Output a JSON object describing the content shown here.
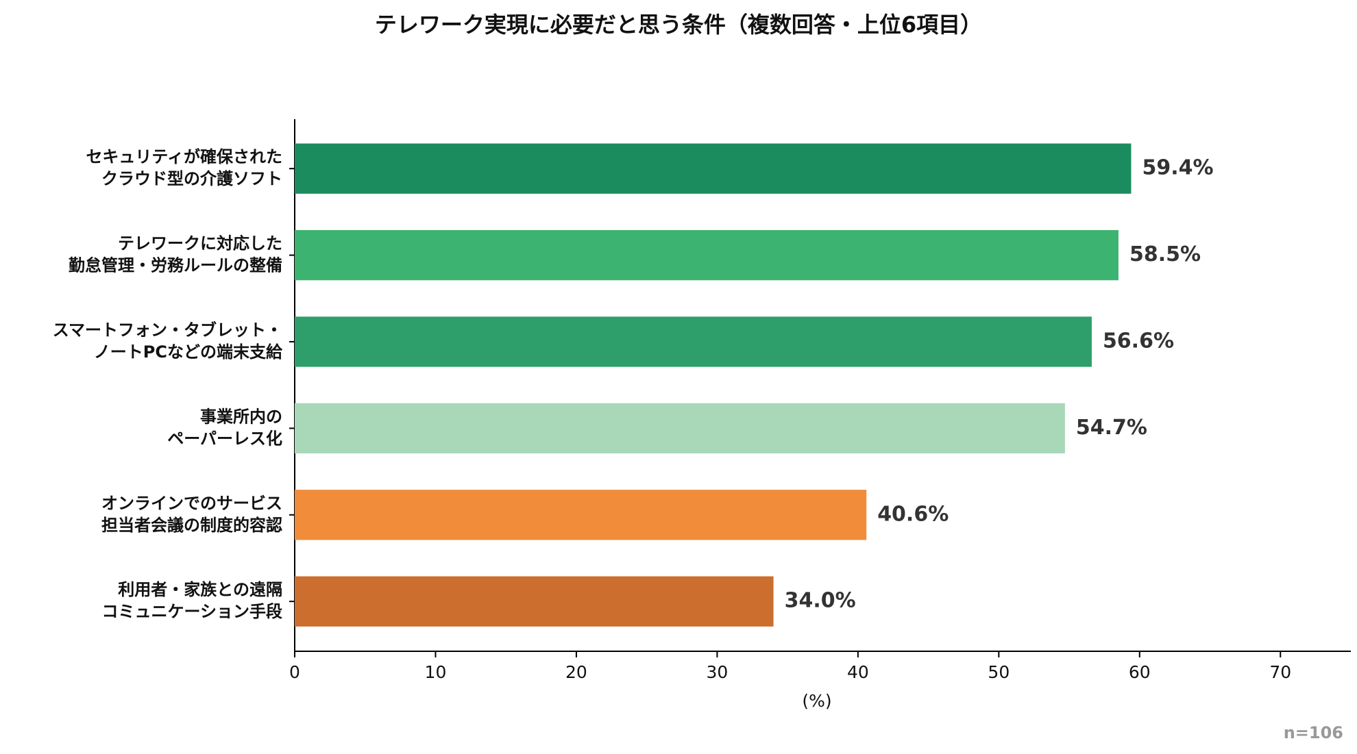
{
  "chart_data": {
    "type": "barh",
    "title": "テレワーク実現に必要だと思う条件（複数回答・上位6項目）",
    "categories": [
      [
        "セキュリティが確保された",
        "クラウド型の介護ソフト"
      ],
      [
        "テレワークに対応した",
        "勤怠管理・労務ルールの整備"
      ],
      [
        "スマートフォン・タブレット・",
        "ノートPCなどの端末支給"
      ],
      [
        "事業所内の",
        "ペーパーレス化"
      ],
      [
        "オンラインでのサービス",
        "担当者会議の制度的容認"
      ],
      [
        "利用者・家族との遠隔",
        "コミュニケーション手段"
      ]
    ],
    "values": [
      59.4,
      58.5,
      56.6,
      54.7,
      40.6,
      34.0
    ],
    "value_labels": [
      "59.4%",
      "58.5%",
      "56.6%",
      "54.7%",
      "40.6%",
      "34.0%"
    ],
    "colors": [
      "#1b8c5e",
      "#3db371",
      "#2e9e6a",
      "#a9d8b9",
      "#f08c3a",
      "#cc6e2e"
    ],
    "xlim": [
      0,
      75
    ],
    "xticks": [
      0,
      10,
      20,
      30,
      40,
      50,
      60,
      70
    ],
    "xlabel": "(%)",
    "note": "n=106"
  }
}
